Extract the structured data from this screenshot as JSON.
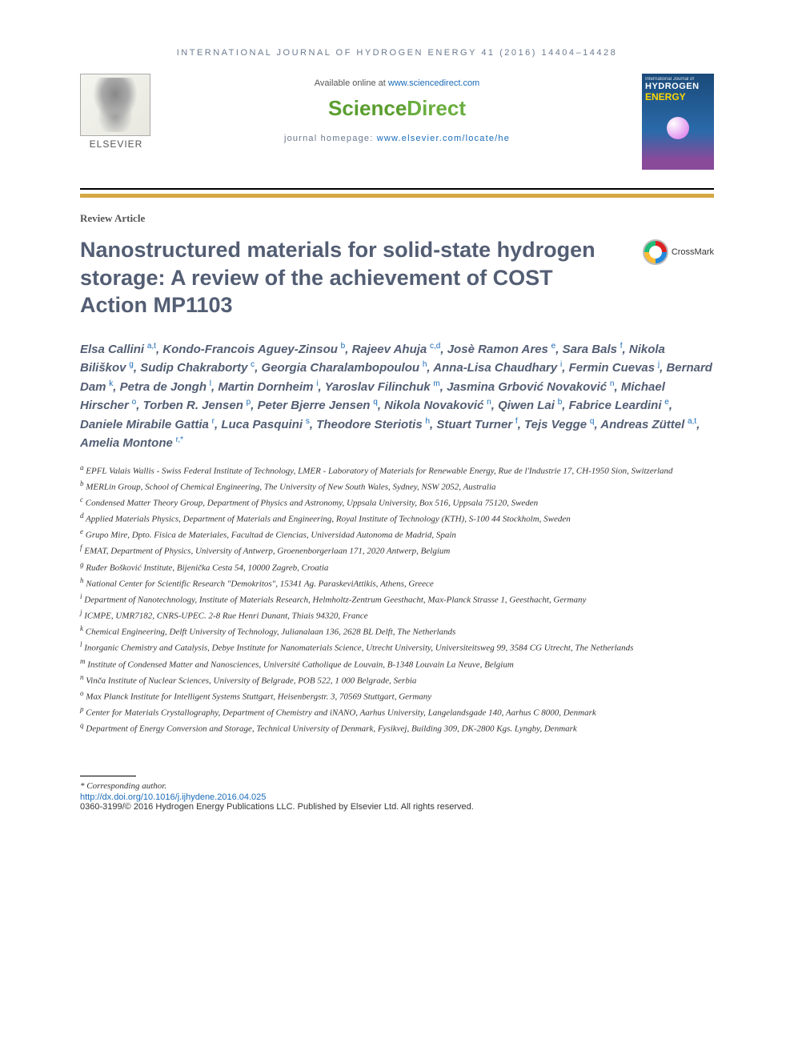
{
  "running_head": "INTERNATIONAL JOURNAL OF HYDROGEN ENERGY 41 (2016) 14404–14428",
  "header": {
    "available_prefix": "Available online at ",
    "available_link": "www.sciencedirect.com",
    "sd_logo_1": "Science",
    "sd_logo_2": "Direct",
    "homepage_prefix": "journal homepage: ",
    "homepage_link": "www.elsevier.com/locate/he",
    "elsevier_label": "ELSEVIER",
    "journal_cover": {
      "line1": "International Journal of",
      "line2": "HYDROGEN",
      "line3": "ENERGY"
    }
  },
  "article_type": "Review Article",
  "title": "Nanostructured materials for solid-state hydrogen storage: A review of the achievement of COST Action MP1103",
  "crossmark_label": "CrossMark",
  "authors": [
    {
      "name": "Elsa Callini",
      "aff": "a,t"
    },
    {
      "name": "Kondo-Francois Aguey-Zinsou",
      "aff": "b"
    },
    {
      "name": "Rajeev Ahuja",
      "aff": "c,d"
    },
    {
      "name": "Josè Ramon Ares",
      "aff": "e"
    },
    {
      "name": "Sara Bals",
      "aff": "f"
    },
    {
      "name": "Nikola Biliškov",
      "aff": "g"
    },
    {
      "name": "Sudip Chakraborty",
      "aff": "c"
    },
    {
      "name": "Georgia Charalambopoulou",
      "aff": "h"
    },
    {
      "name": "Anna-Lisa Chaudhary",
      "aff": "i"
    },
    {
      "name": "Fermin Cuevas",
      "aff": "j"
    },
    {
      "name": "Bernard Dam",
      "aff": "k"
    },
    {
      "name": "Petra de Jongh",
      "aff": "l"
    },
    {
      "name": "Martin Dornheim",
      "aff": "i"
    },
    {
      "name": "Yaroslav Filinchuk",
      "aff": "m"
    },
    {
      "name": "Jasmina Grbović Novaković",
      "aff": "n"
    },
    {
      "name": "Michael Hirscher",
      "aff": "o"
    },
    {
      "name": "Torben R. Jensen",
      "aff": "p"
    },
    {
      "name": "Peter Bjerre Jensen",
      "aff": "q"
    },
    {
      "name": "Nikola Novaković",
      "aff": "n"
    },
    {
      "name": "Qiwen Lai",
      "aff": "b"
    },
    {
      "name": "Fabrice Leardini",
      "aff": "e"
    },
    {
      "name": "Daniele Mirabile Gattia",
      "aff": "r"
    },
    {
      "name": "Luca Pasquini",
      "aff": "s"
    },
    {
      "name": "Theodore Steriotis",
      "aff": "h"
    },
    {
      "name": "Stuart Turner",
      "aff": "f"
    },
    {
      "name": "Tejs Vegge",
      "aff": "q"
    },
    {
      "name": "Andreas Züttel",
      "aff": "a,t"
    },
    {
      "name": "Amelia Montone",
      "aff": "r,*"
    }
  ],
  "affiliations": [
    {
      "key": "a",
      "text": "EPFL Valais Wallis - Swiss Federal Institute of Technology, LMER - Laboratory of Materials for Renewable Energy, Rue de l'Industrie 17, CH-1950 Sion, Switzerland"
    },
    {
      "key": "b",
      "text": "MERLin Group, School of Chemical Engineering, The University of New South Wales, Sydney, NSW 2052, Australia"
    },
    {
      "key": "c",
      "text": "Condensed Matter Theory Group, Department of Physics and Astronomy, Uppsala University, Box 516, Uppsala 75120, Sweden"
    },
    {
      "key": "d",
      "text": "Applied Materials Physics, Department of Materials and Engineering, Royal Institute of Technology (KTH), S-100 44 Stockholm, Sweden"
    },
    {
      "key": "e",
      "text": "Grupo Mire, Dpto. Fisica de Materiales, Facultad de Ciencias, Universidad Autonoma de Madrid, Spain"
    },
    {
      "key": "f",
      "text": "EMAT, Department of Physics, University of Antwerp, Groenenborgerlaan 171, 2020 Antwerp, Belgium"
    },
    {
      "key": "g",
      "text": "Ruđer Bošković Institute, Bijenička Cesta 54, 10000 Zagreb, Croatia"
    },
    {
      "key": "h",
      "text": "National Center for Scientific Research \"Demokritos\", 15341 Ag. ParaskeviAttikis, Athens, Greece"
    },
    {
      "key": "i",
      "text": "Department of Nanotechnology, Institute of Materials Research, Helmholtz-Zentrum Geesthacht, Max-Planck Strasse 1, Geesthacht, Germany"
    },
    {
      "key": "j",
      "text": "ICMPE, UMR7182, CNRS-UPEC. 2-8 Rue Henri Dunant, Thiais 94320, France"
    },
    {
      "key": "k",
      "text": "Chemical Engineering, Delft University of Technology, Julianalaan 136, 2628 BL Delft, The Netherlands"
    },
    {
      "key": "l",
      "text": "Inorganic Chemistry and Catalysis, Debye Institute for Nanomaterials Science, Utrecht University, Universiteitsweg 99, 3584 CG Utrecht, The Netherlands"
    },
    {
      "key": "m",
      "text": "Institute of Condensed Matter and Nanosciences, Université Catholique de Louvain, B-1348 Louvain La Neuve, Belgium"
    },
    {
      "key": "n",
      "text": "Vinča Institute of Nuclear Sciences, University of Belgrade, POB 522, 1 000 Belgrade, Serbia"
    },
    {
      "key": "o",
      "text": "Max Planck Institute for Intelligent Systems Stuttgart, Heisenbergstr. 3, 70569 Stuttgart, Germany"
    },
    {
      "key": "p",
      "text": "Center for Materials Crystallography, Department of Chemistry and iNANO, Aarhus University, Langelandsgade 140, Aarhus C 8000, Denmark"
    },
    {
      "key": "q",
      "text": "Department of Energy Conversion and Storage, Technical University of Denmark, Fysikvej, Building 309, DK-2800 Kgs. Lyngby, Denmark"
    }
  ],
  "footer": {
    "corresponding": "* Corresponding author.",
    "doi": "http://dx.doi.org/10.1016/j.ijhydene.2016.04.025",
    "copyright": "0360-3199/© 2016 Hydrogen Energy Publications LLC. Published by Elsevier Ltd. All rights reserved."
  },
  "colors": {
    "accent_blue": "#1a6bb8",
    "title_gray": "#535e74",
    "gold_bar": "#d4a843",
    "sd_green": "#5a9e2f",
    "running_gray": "#6b7a8f"
  }
}
